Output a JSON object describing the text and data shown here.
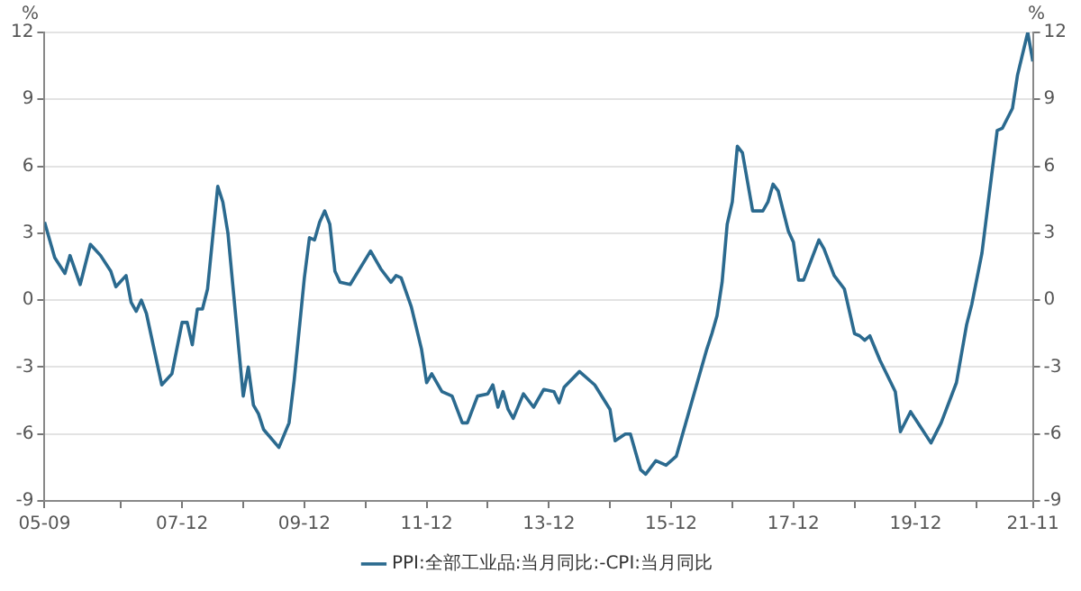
{
  "chart_data": {
    "type": "line",
    "ylabel": "%",
    "y2label": "%",
    "x": [
      "2005-09",
      "2005-11",
      "2006-01",
      "2006-02",
      "2006-04",
      "2006-06",
      "2006-08",
      "2006-10",
      "2006-11",
      "2007-01",
      "2007-02",
      "2007-03",
      "2007-04",
      "2007-05",
      "2007-08",
      "2007-10",
      "2007-12",
      "2008-01",
      "2008-02",
      "2008-03",
      "2008-04",
      "2008-05",
      "2008-07",
      "2008-08",
      "2008-09",
      "2008-12",
      "2009-01",
      "2009-02",
      "2009-03",
      "2009-04",
      "2009-07",
      "2009-09",
      "2009-10",
      "2009-12",
      "2010-01",
      "2010-02",
      "2010-03",
      "2010-04",
      "2010-05",
      "2010-06",
      "2010-07",
      "2010-09",
      "2011-01",
      "2011-03",
      "2011-05",
      "2011-06",
      "2011-07",
      "2011-09",
      "2011-11",
      "2011-12",
      "2012-01",
      "2012-03",
      "2012-05",
      "2012-07",
      "2012-08",
      "2012-10",
      "2012-12",
      "2013-01",
      "2013-02",
      "2013-03",
      "2013-04",
      "2013-05",
      "2013-07",
      "2013-09",
      "2013-11",
      "2014-01",
      "2014-02",
      "2014-03",
      "2014-06",
      "2014-09",
      "2014-12",
      "2015-01",
      "2015-03",
      "2015-04",
      "2015-06",
      "2015-07",
      "2015-09",
      "2015-11",
      "2016-01",
      "2016-02",
      "2016-04",
      "2016-07",
      "2016-08",
      "2016-09",
      "2016-10",
      "2016-11",
      "2016-12",
      "2017-01",
      "2017-02",
      "2017-04",
      "2017-06",
      "2017-07",
      "2017-08",
      "2017-09",
      "2017-11",
      "2017-12",
      "2018-01",
      "2018-02",
      "2018-05",
      "2018-06",
      "2018-08",
      "2018-10",
      "2018-12",
      "2019-01",
      "2019-02",
      "2019-03",
      "2019-05",
      "2019-08",
      "2019-09",
      "2019-11",
      "2020-03",
      "2020-05",
      "2020-08",
      "2020-10",
      "2020-11",
      "2021-01",
      "2021-04",
      "2021-05",
      "2021-07",
      "2021-08",
      "2021-10",
      "2021-11"
    ],
    "series": [
      {
        "name": "PPI:全部工业品:当月同比:-CPI:当月同比",
        "color": "#2b6a8f",
        "values": [
          3.5,
          1.9,
          1.2,
          2.0,
          0.7,
          2.5,
          2.0,
          1.3,
          0.6,
          1.1,
          -0.1,
          -0.5,
          0.0,
          -0.6,
          -3.8,
          -3.3,
          -1.0,
          -1.0,
          -2.0,
          -0.4,
          -0.4,
          0.5,
          5.1,
          4.4,
          3.0,
          -4.3,
          -3.0,
          -4.7,
          -5.1,
          -5.8,
          -6.6,
          -5.5,
          -3.6,
          1.0,
          2.8,
          2.7,
          3.5,
          4.0,
          3.4,
          1.3,
          0.8,
          0.7,
          2.2,
          1.4,
          0.8,
          1.1,
          1.0,
          -0.3,
          -2.2,
          -3.7,
          -3.3,
          -4.1,
          -4.3,
          -5.5,
          -5.5,
          -4.3,
          -4.2,
          -3.8,
          -4.8,
          -4.1,
          -4.9,
          -5.3,
          -4.2,
          -4.8,
          -4.0,
          -4.1,
          -4.6,
          -3.9,
          -3.2,
          -3.8,
          -4.9,
          -6.3,
          -6.0,
          -6.0,
          -7.6,
          -7.8,
          -7.2,
          -7.4,
          -7.0,
          -6.2,
          -4.6,
          -2.2,
          -1.5,
          -0.7,
          0.8,
          3.4,
          4.4,
          6.9,
          6.6,
          4.0,
          4.0,
          4.4,
          5.2,
          4.9,
          3.1,
          2.6,
          0.9,
          0.9,
          2.7,
          2.3,
          1.1,
          0.5,
          -1.5,
          -1.6,
          -1.8,
          -1.6,
          -2.7,
          -4.1,
          -5.9,
          -5.0,
          -6.4,
          -5.5,
          -3.7,
          -1.1,
          -0.2,
          2.1,
          7.6,
          7.7,
          8.6,
          10.1,
          12.0,
          10.7
        ]
      }
    ],
    "xlim": [
      "2005-09",
      "2021-11"
    ],
    "xticks": [
      {
        "value": "2005-09",
        "label": "05-09"
      },
      {
        "value": "2006-12",
        "label": null
      },
      {
        "value": "2007-12",
        "label": "07-12"
      },
      {
        "value": "2008-12",
        "label": null
      },
      {
        "value": "2009-12",
        "label": "09-12"
      },
      {
        "value": "2010-12",
        "label": null
      },
      {
        "value": "2011-12",
        "label": "11-12"
      },
      {
        "value": "2012-12",
        "label": null
      },
      {
        "value": "2013-12",
        "label": "13-12"
      },
      {
        "value": "2014-12",
        "label": null
      },
      {
        "value": "2015-12",
        "label": "15-12"
      },
      {
        "value": "2016-12",
        "label": null
      },
      {
        "value": "2017-12",
        "label": "17-12"
      },
      {
        "value": "2018-12",
        "label": null
      },
      {
        "value": "2019-12",
        "label": "19-12"
      },
      {
        "value": "2020-12",
        "label": null
      },
      {
        "value": "2021-11",
        "label": "21-11"
      }
    ],
    "ylim": [
      -9,
      12
    ],
    "yticks": [
      -9,
      -6,
      -3,
      0,
      3,
      6,
      9,
      12
    ],
    "y2lim": [
      -9,
      12
    ],
    "y2ticks": [
      -9,
      -6,
      -3,
      0,
      3,
      6,
      9,
      12
    ],
    "grid": "y",
    "legend": "bottom",
    "marker": "none",
    "line_style": "solid"
  }
}
